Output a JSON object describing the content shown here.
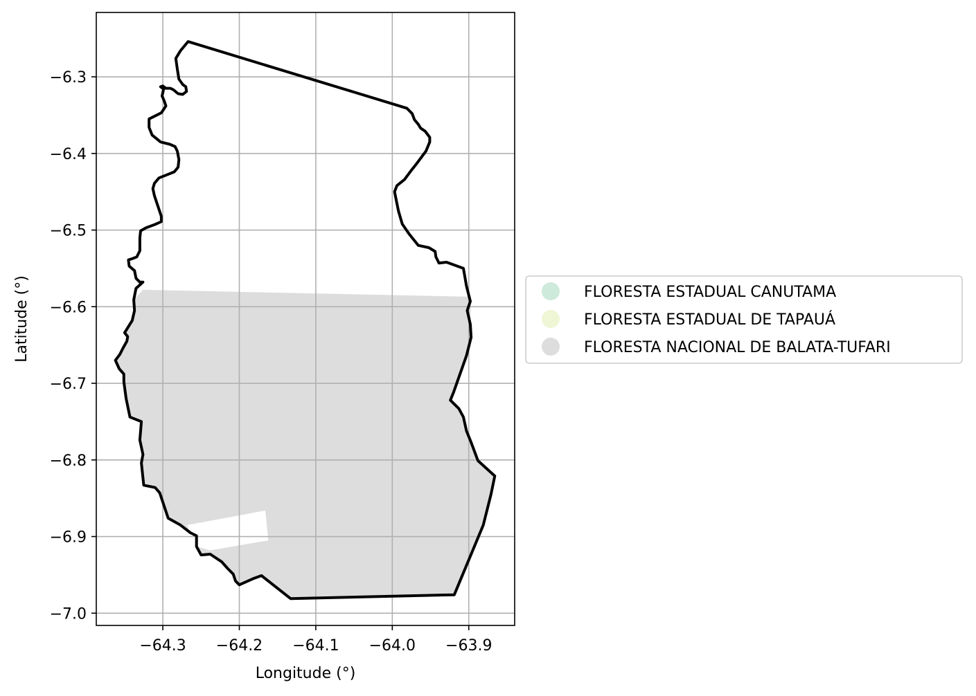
{
  "chart_data": {
    "type": "map",
    "title": "",
    "xlabel": "Longitude (°)",
    "ylabel": "Latitude (°)",
    "xlim": [
      -64.387,
      -63.84
    ],
    "ylim": [
      -7.016,
      -6.216
    ],
    "grid": true,
    "x_ticks": [
      {
        "value": -64.3,
        "label": "−64.3"
      },
      {
        "value": -64.2,
        "label": "−64.2"
      },
      {
        "value": -64.1,
        "label": "−64.1"
      },
      {
        "value": -64.0,
        "label": "−64.0"
      },
      {
        "value": -63.9,
        "label": "−63.9"
      }
    ],
    "y_ticks": [
      {
        "value": -6.3,
        "label": "−6.3"
      },
      {
        "value": -6.4,
        "label": "−6.4"
      },
      {
        "value": -6.5,
        "label": "−6.5"
      },
      {
        "value": -6.6,
        "label": "−6.6"
      },
      {
        "value": -6.7,
        "label": "−6.7"
      },
      {
        "value": -6.8,
        "label": "−6.8"
      },
      {
        "value": -6.9,
        "label": "−6.9"
      },
      {
        "value": -7.0,
        "label": "−7.0"
      }
    ],
    "legend_position": "right",
    "legend": [
      {
        "name": "FLORESTA ESTADUAL CANUTAMA",
        "color": "#cdeadb"
      },
      {
        "name": "FLORESTA ESTADUAL DE TAPAUÁ",
        "color": "#eef6d6"
      },
      {
        "name": "FLORESTA NACIONAL DE BALATA-TUFARI",
        "color": "#dddddd"
      }
    ],
    "region_outline": {
      "color": "#000000",
      "coords": [
        [
          -64.267,
          -6.254
        ],
        [
          -64.277,
          -6.266
        ],
        [
          -64.283,
          -6.276
        ],
        [
          -64.281,
          -6.29
        ],
        [
          -64.279,
          -6.303
        ],
        [
          -64.274,
          -6.31
        ],
        [
          -64.27,
          -6.313
        ],
        [
          -64.269,
          -6.319
        ],
        [
          -64.274,
          -6.323
        ],
        [
          -64.28,
          -6.322
        ],
        [
          -64.286,
          -6.317
        ],
        [
          -64.29,
          -6.315
        ],
        [
          -64.296,
          -6.315
        ],
        [
          -64.3,
          -6.312
        ],
        [
          -64.303,
          -6.313
        ],
        [
          -64.299,
          -6.316
        ],
        [
          -64.301,
          -6.325
        ],
        [
          -64.298,
          -6.332
        ],
        [
          -64.296,
          -6.338
        ],
        [
          -64.302,
          -6.347
        ],
        [
          -64.318,
          -6.355
        ],
        [
          -64.318,
          -6.366
        ],
        [
          -64.314,
          -6.376
        ],
        [
          -64.303,
          -6.385
        ],
        [
          -64.291,
          -6.388
        ],
        [
          -64.284,
          -6.391
        ],
        [
          -64.281,
          -6.397
        ],
        [
          -64.279,
          -6.408
        ],
        [
          -64.28,
          -6.418
        ],
        [
          -64.285,
          -6.424
        ],
        [
          -64.295,
          -6.428
        ],
        [
          -64.305,
          -6.432
        ],
        [
          -64.311,
          -6.439
        ],
        [
          -64.313,
          -6.446
        ],
        [
          -64.311,
          -6.455
        ],
        [
          -64.306,
          -6.47
        ],
        [
          -64.302,
          -6.482
        ],
        [
          -64.302,
          -6.489
        ],
        [
          -64.311,
          -6.493
        ],
        [
          -64.322,
          -6.497
        ],
        [
          -64.329,
          -6.501
        ],
        [
          -64.33,
          -6.51
        ],
        [
          -64.33,
          -6.527
        ],
        [
          -64.334,
          -6.535
        ],
        [
          -64.339,
          -6.537
        ],
        [
          -64.345,
          -6.539
        ],
        [
          -64.344,
          -6.547
        ],
        [
          -64.337,
          -6.553
        ],
        [
          -64.335,
          -6.563
        ],
        [
          -64.33,
          -6.568
        ],
        [
          -64.326,
          -6.568
        ],
        [
          -64.335,
          -6.576
        ],
        [
          -64.338,
          -6.591
        ],
        [
          -64.337,
          -6.605
        ],
        [
          -64.34,
          -6.618
        ],
        [
          -64.35,
          -6.634
        ],
        [
          -64.346,
          -6.639
        ],
        [
          -64.347,
          -6.645
        ],
        [
          -64.352,
          -6.654
        ],
        [
          -64.356,
          -6.662
        ],
        [
          -64.362,
          -6.67
        ],
        [
          -64.357,
          -6.681
        ],
        [
          -64.351,
          -6.688
        ],
        [
          -64.351,
          -6.698
        ],
        [
          -64.348,
          -6.72
        ],
        [
          -64.343,
          -6.744
        ],
        [
          -64.328,
          -6.75
        ],
        [
          -64.33,
          -6.774
        ],
        [
          -64.326,
          -6.793
        ],
        [
          -64.328,
          -6.804
        ],
        [
          -64.325,
          -6.833
        ],
        [
          -64.31,
          -6.836
        ],
        [
          -64.304,
          -6.843
        ],
        [
          -64.293,
          -6.876
        ],
        [
          -64.277,
          -6.885
        ],
        [
          -64.264,
          -6.895
        ],
        [
          -64.256,
          -6.899
        ],
        [
          -64.256,
          -6.913
        ],
        [
          -64.25,
          -6.924
        ],
        [
          -64.238,
          -6.923
        ],
        [
          -64.223,
          -6.933
        ],
        [
          -64.215,
          -6.942
        ],
        [
          -64.208,
          -6.949
        ],
        [
          -64.205,
          -6.958
        ],
        [
          -64.2,
          -6.963
        ],
        [
          -64.182,
          -6.955
        ],
        [
          -64.171,
          -6.951
        ],
        [
          -64.133,
          -6.981
        ],
        [
          -63.919,
          -6.976
        ],
        [
          -63.881,
          -6.885
        ],
        [
          -63.871,
          -6.845
        ],
        [
          -63.866,
          -6.821
        ],
        [
          -63.888,
          -6.801
        ],
        [
          -63.897,
          -6.777
        ],
        [
          -63.903,
          -6.762
        ],
        [
          -63.907,
          -6.744
        ],
        [
          -63.913,
          -6.733
        ],
        [
          -63.924,
          -6.722
        ],
        [
          -63.92,
          -6.712
        ],
        [
          -63.903,
          -6.664
        ],
        [
          -63.897,
          -6.64
        ],
        [
          -63.898,
          -6.623
        ],
        [
          -63.902,
          -6.605
        ],
        [
          -63.898,
          -6.593
        ],
        [
          -63.903,
          -6.573
        ],
        [
          -63.907,
          -6.55
        ],
        [
          -63.929,
          -6.542
        ],
        [
          -63.939,
          -6.543
        ],
        [
          -63.943,
          -6.535
        ],
        [
          -63.944,
          -6.528
        ],
        [
          -63.952,
          -6.523
        ],
        [
          -63.966,
          -6.52
        ],
        [
          -63.978,
          -6.505
        ],
        [
          -63.987,
          -6.492
        ],
        [
          -63.992,
          -6.475
        ],
        [
          -63.997,
          -6.45
        ],
        [
          -63.994,
          -6.442
        ],
        [
          -63.984,
          -6.434
        ],
        [
          -63.975,
          -6.422
        ],
        [
          -63.968,
          -6.413
        ],
        [
          -63.956,
          -6.397
        ],
        [
          -63.951,
          -6.385
        ],
        [
          -63.951,
          -6.379
        ],
        [
          -63.957,
          -6.371
        ],
        [
          -63.963,
          -6.367
        ],
        [
          -63.966,
          -6.362
        ],
        [
          -63.971,
          -6.356
        ],
        [
          -63.974,
          -6.348
        ],
        [
          -63.981,
          -6.341
        ],
        [
          -64.267,
          -6.254
        ]
      ]
    },
    "regions": [
      {
        "name": "FLORESTA NACIONAL DE BALATA-TUFARI",
        "color": "#dddddd",
        "coords": [
          [
            -64.326,
            -6.578
          ],
          [
            -63.897,
            -6.587
          ],
          [
            -63.898,
            -6.623
          ],
          [
            -63.903,
            -6.664
          ],
          [
            -63.92,
            -6.712
          ],
          [
            -63.924,
            -6.722
          ],
          [
            -63.913,
            -6.733
          ],
          [
            -63.907,
            -6.744
          ],
          [
            -63.903,
            -6.762
          ],
          [
            -63.897,
            -6.777
          ],
          [
            -63.888,
            -6.801
          ],
          [
            -63.866,
            -6.821
          ],
          [
            -63.871,
            -6.845
          ],
          [
            -63.881,
            -6.885
          ],
          [
            -63.919,
            -6.976
          ],
          [
            -64.133,
            -6.981
          ],
          [
            -64.171,
            -6.951
          ],
          [
            -64.182,
            -6.955
          ],
          [
            -64.2,
            -6.963
          ],
          [
            -64.205,
            -6.958
          ],
          [
            -64.208,
            -6.949
          ],
          [
            -64.215,
            -6.942
          ],
          [
            -64.223,
            -6.933
          ],
          [
            -64.238,
            -6.923
          ],
          [
            -64.25,
            -6.924
          ],
          [
            -64.256,
            -6.913
          ],
          [
            -64.256,
            -6.899
          ],
          [
            -64.264,
            -6.895
          ],
          [
            -64.277,
            -6.885
          ],
          [
            -64.293,
            -6.876
          ],
          [
            -64.304,
            -6.843
          ],
          [
            -64.31,
            -6.836
          ],
          [
            -64.325,
            -6.833
          ],
          [
            -64.328,
            -6.804
          ],
          [
            -64.326,
            -6.793
          ],
          [
            -64.33,
            -6.774
          ],
          [
            -64.328,
            -6.75
          ],
          [
            -64.343,
            -6.744
          ],
          [
            -64.348,
            -6.72
          ],
          [
            -64.351,
            -6.698
          ],
          [
            -64.351,
            -6.688
          ],
          [
            -64.357,
            -6.681
          ],
          [
            -64.362,
            -6.67
          ],
          [
            -64.356,
            -6.662
          ],
          [
            -64.352,
            -6.654
          ],
          [
            -64.347,
            -6.645
          ],
          [
            -64.346,
            -6.639
          ],
          [
            -64.35,
            -6.634
          ],
          [
            -64.34,
            -6.618
          ],
          [
            -64.337,
            -6.605
          ],
          [
            -64.338,
            -6.591
          ],
          [
            -64.326,
            -6.578
          ]
        ]
      }
    ],
    "holes": [
      {
        "color": "#ffffff",
        "coords": [
          [
            -64.268,
            -6.885
          ],
          [
            -64.166,
            -6.866
          ],
          [
            -64.162,
            -6.905
          ],
          [
            -64.238,
            -6.918
          ],
          [
            -64.256,
            -6.913
          ],
          [
            -64.256,
            -6.899
          ],
          [
            -64.264,
            -6.895
          ],
          [
            -64.268,
            -6.885
          ]
        ]
      }
    ]
  }
}
